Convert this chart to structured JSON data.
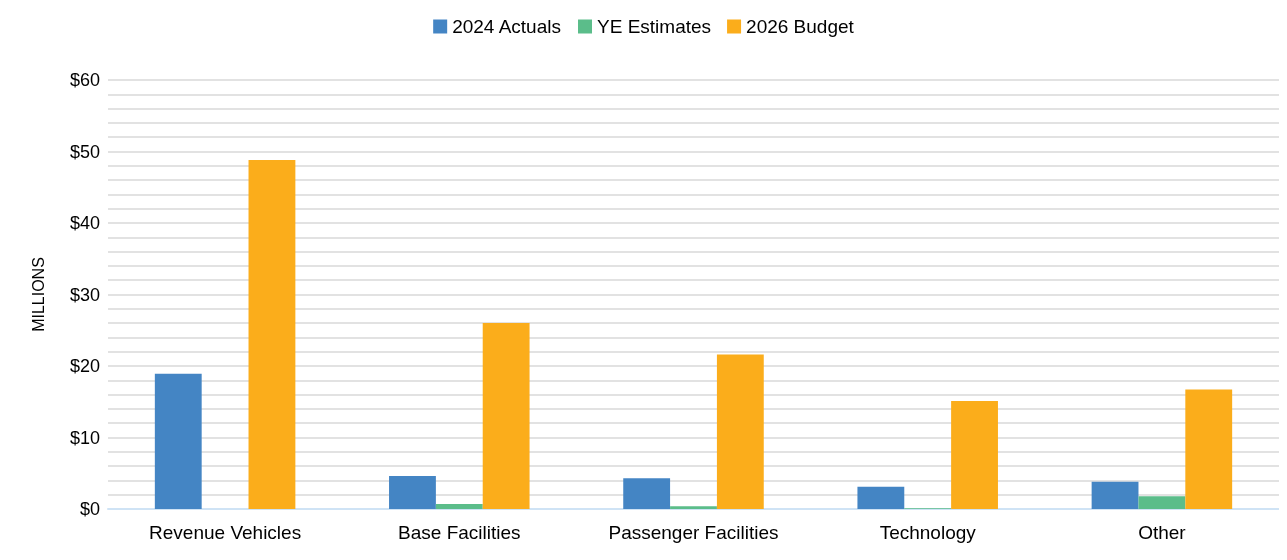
{
  "chart_data": {
    "type": "bar",
    "ylabel": "MILLIONS",
    "categories": [
      "Revenue Vehicles",
      "Base Facilities",
      "Passenger Facilities",
      "Technology",
      "Other"
    ],
    "series": [
      {
        "name": "2024 Actuals",
        "color": "#4485c4",
        "values": [
          18.9,
          4.6,
          4.3,
          3.1,
          3.8
        ]
      },
      {
        "name": "YE Estimates",
        "color": "#5bbd8a",
        "values": [
          0,
          0.7,
          0.4,
          0.1,
          1.8
        ]
      },
      {
        "name": "2026 Budget",
        "color": "#fbad1b",
        "values": [
          48.8,
          26.0,
          21.6,
          15.1,
          16.7
        ]
      }
    ],
    "ylim": [
      0,
      60
    ],
    "yticks": [
      {
        "value": 0,
        "label": "$0"
      },
      {
        "value": 2,
        "label": null
      },
      {
        "value": 4,
        "label": null
      },
      {
        "value": 6,
        "label": null
      },
      {
        "value": 8,
        "label": null
      },
      {
        "value": 10,
        "label": "$10"
      },
      {
        "value": 12,
        "label": null
      },
      {
        "value": 14,
        "label": null
      },
      {
        "value": 16,
        "label": null
      },
      {
        "value": 18,
        "label": null
      },
      {
        "value": 20,
        "label": "$20"
      },
      {
        "value": 22,
        "label": null
      },
      {
        "value": 24,
        "label": null
      },
      {
        "value": 26,
        "label": null
      },
      {
        "value": 28,
        "label": null
      },
      {
        "value": 30,
        "label": "$30"
      },
      {
        "value": 32,
        "label": null
      },
      {
        "value": 34,
        "label": null
      },
      {
        "value": 36,
        "label": null
      },
      {
        "value": 38,
        "label": null
      },
      {
        "value": 40,
        "label": "$40"
      },
      {
        "value": 42,
        "label": null
      },
      {
        "value": 44,
        "label": null
      },
      {
        "value": 46,
        "label": null
      },
      {
        "value": 48,
        "label": null
      },
      {
        "value": 50,
        "label": "$50"
      },
      {
        "value": 52,
        "label": null
      },
      {
        "value": 54,
        "label": null
      },
      {
        "value": 56,
        "label": null
      },
      {
        "value": 58,
        "label": null
      },
      {
        "value": 60,
        "label": "$60"
      }
    ],
    "grid": "y",
    "legend": "top"
  }
}
